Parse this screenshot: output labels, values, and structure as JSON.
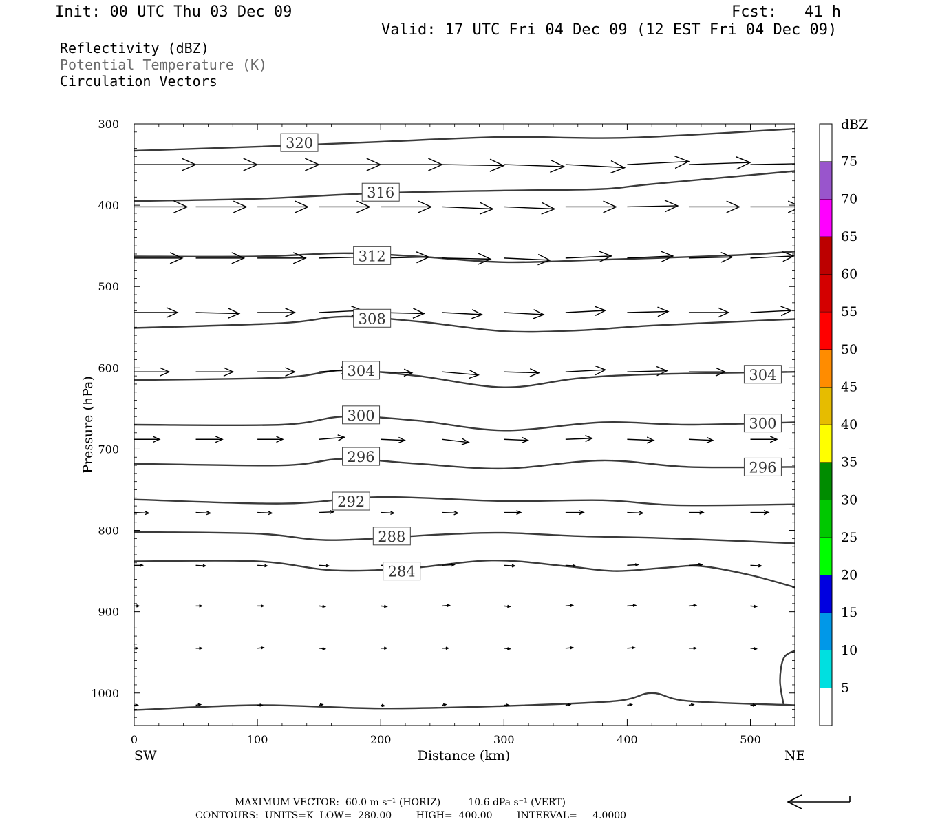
{
  "header": {
    "init": "Init: 00 UTC Thu 03 Dec 09",
    "fcst": "Fcst:   41 h",
    "valid": "Valid: 17 UTC Fri 04 Dec 09 (12 EST Fri 04 Dec 09)"
  },
  "legend_text": {
    "line1": "Reflectivity (dBZ)",
    "line2": "Potential Temperature (K)",
    "line3": "Circulation Vectors"
  },
  "footer": {
    "line1": "MAXIMUM VECTOR:  60.0 m s⁻¹ (HORIZ)         10.6 dPa s⁻¹ (VERT)",
    "line2": "CONTOURS:  UNITS=K  LOW=  280.00        HIGH=  400.00        INTERVAL=     4.0000"
  },
  "colors": {
    "contour": "#3a3a3a",
    "legend_gray": "#6a6a6a"
  },
  "icons": {
    "reference-vector": "arrow"
  },
  "chart_data": {
    "type": "contour",
    "xlabel": "Distance (km)",
    "ylabel": "Pressure (hPa)",
    "xlim": [
      0,
      536
    ],
    "ylim": [
      1040,
      300
    ],
    "xticks": [
      0,
      100,
      200,
      300,
      400,
      500
    ],
    "yticks": [
      300,
      400,
      500,
      600,
      700,
      800,
      900,
      1000
    ],
    "x_endpoints": {
      "left": "SW",
      "right": "NE"
    },
    "colorbar": {
      "title": "dBZ",
      "levels": [
        5,
        10,
        15,
        20,
        25,
        30,
        35,
        40,
        45,
        50,
        55,
        60,
        65,
        70,
        75
      ],
      "colors": [
        "#ffffff",
        "#00e0e0",
        "#0098e8",
        "#0000e0",
        "#00ff00",
        "#00c800",
        "#008c00",
        "#ffff00",
        "#e6bc00",
        "#ff8c00",
        "#ff0000",
        "#d40000",
        "#bc0000",
        "#ff00ff",
        "#9955cc",
        "#ffffff"
      ]
    },
    "contours": [
      {
        "value": 320,
        "label": "320",
        "points": [
          [
            0,
            333
          ],
          [
            100,
            328
          ],
          [
            200,
            322
          ],
          [
            300,
            316
          ],
          [
            400,
            317
          ],
          [
            536,
            306
          ]
        ],
        "labels_at": [
          [
            134,
            323
          ]
        ]
      },
      {
        "value": 316,
        "label": "316",
        "points": [
          [
            0,
            395
          ],
          [
            100,
            392
          ],
          [
            200,
            385
          ],
          [
            300,
            382
          ],
          [
            380,
            380
          ],
          [
            420,
            374
          ],
          [
            536,
            358
          ]
        ],
        "labels_at": [
          [
            200,
            384
          ]
        ]
      },
      {
        "value": 312,
        "label": "312",
        "points": [
          [
            0,
            463
          ],
          [
            100,
            463
          ],
          [
            170,
            459
          ],
          [
            230,
            463
          ],
          [
            300,
            470
          ],
          [
            380,
            467
          ],
          [
            480,
            462
          ],
          [
            536,
            457
          ]
        ],
        "labels_at": [
          [
            193,
            462
          ]
        ]
      },
      {
        "value": 308,
        "label": "308",
        "points": [
          [
            0,
            551
          ],
          [
            120,
            545
          ],
          [
            170,
            537
          ],
          [
            230,
            543
          ],
          [
            300,
            555
          ],
          [
            360,
            554
          ],
          [
            420,
            548
          ],
          [
            536,
            540
          ]
        ],
        "labels_at": [
          [
            193,
            539
          ]
        ]
      },
      {
        "value": 304,
        "label": "304",
        "points": [
          [
            0,
            615
          ],
          [
            120,
            612
          ],
          [
            170,
            603
          ],
          [
            230,
            610
          ],
          [
            300,
            624
          ],
          [
            360,
            613
          ],
          [
            420,
            608
          ],
          [
            536,
            605
          ]
        ],
        "labels_at": [
          [
            184,
            603
          ],
          [
            510,
            608
          ]
        ]
      },
      {
        "value": 300,
        "label": "300",
        "points": [
          [
            0,
            670
          ],
          [
            120,
            670
          ],
          [
            170,
            660
          ],
          [
            230,
            665
          ],
          [
            300,
            677
          ],
          [
            380,
            667
          ],
          [
            450,
            670
          ],
          [
            536,
            667
          ]
        ],
        "labels_at": [
          [
            184,
            658
          ],
          [
            510,
            668
          ]
        ]
      },
      {
        "value": 296,
        "label": "296",
        "points": [
          [
            0,
            718
          ],
          [
            120,
            720
          ],
          [
            170,
            712
          ],
          [
            230,
            718
          ],
          [
            300,
            724
          ],
          [
            380,
            714
          ],
          [
            450,
            722
          ],
          [
            536,
            722
          ]
        ],
        "labels_at": [
          [
            184,
            709
          ],
          [
            510,
            722
          ]
        ]
      },
      {
        "value": 292,
        "label": "292",
        "points": [
          [
            0,
            762
          ],
          [
            120,
            767
          ],
          [
            200,
            759
          ],
          [
            300,
            764
          ],
          [
            380,
            763
          ],
          [
            440,
            769
          ],
          [
            536,
            768
          ]
        ],
        "labels_at": [
          [
            176,
            764
          ]
        ]
      },
      {
        "value": 288,
        "label": "288",
        "points": [
          [
            0,
            802
          ],
          [
            100,
            804
          ],
          [
            160,
            812
          ],
          [
            250,
            805
          ],
          [
            300,
            803
          ],
          [
            360,
            807
          ],
          [
            440,
            810
          ],
          [
            536,
            816
          ]
        ],
        "labels_at": [
          [
            209,
            807
          ]
        ]
      },
      {
        "value": 284,
        "label": "284",
        "points": [
          [
            0,
            838
          ],
          [
            100,
            838
          ],
          [
            160,
            849
          ],
          [
            220,
            847
          ],
          [
            290,
            837
          ],
          [
            350,
            844
          ],
          [
            390,
            850
          ],
          [
            430,
            846
          ],
          [
            460,
            844
          ],
          [
            500,
            855
          ],
          [
            536,
            870
          ]
        ],
        "labels_at": [
          [
            217,
            850
          ]
        ]
      },
      {
        "value": 280,
        "label": "",
        "points": [
          [
            0,
            1021
          ],
          [
            100,
            1015
          ],
          [
            200,
            1019
          ],
          [
            300,
            1016
          ],
          [
            390,
            1010
          ],
          [
            420,
            1000
          ],
          [
            450,
            1010
          ],
          [
            536,
            1015
          ]
        ],
        "labels_at": []
      },
      {
        "value": 280,
        "label": "",
        "points": [
          [
            527,
            1015
          ],
          [
            524,
            985
          ],
          [
            527,
            957
          ],
          [
            536,
            948
          ]
        ],
        "labels_at": []
      }
    ],
    "vectors_note": "circulation vectors in m/s (u along section) with vertical component",
    "vector_rows": [
      {
        "p": 350,
        "x": [
          0,
          50,
          100,
          150,
          200,
          250,
          300,
          350,
          400,
          450,
          500
        ],
        "u": [
          51,
          51,
          51,
          51,
          51,
          51,
          50,
          49,
          51,
          51,
          51
        ],
        "v": [
          0,
          0,
          0,
          0,
          0,
          -0.5,
          -1,
          -1.5,
          1.5,
          1,
          0.5
        ]
      },
      {
        "p": 402,
        "x": [
          0,
          50,
          100,
          150,
          200,
          250,
          300,
          350,
          400,
          450,
          500
        ],
        "u": [
          44,
          42,
          42,
          42,
          42,
          42,
          42,
          42,
          42,
          42,
          42
        ],
        "v": [
          0,
          0,
          0,
          0,
          0,
          -1,
          -1,
          0,
          0.5,
          0,
          0
        ]
      },
      {
        "p": 465,
        "x": [
          0,
          50,
          100,
          150,
          200,
          250,
          300,
          350,
          400,
          450,
          500
        ],
        "u": [
          40,
          40,
          40,
          40,
          40,
          40,
          38,
          38,
          38,
          36,
          36
        ],
        "v": [
          0,
          0,
          0,
          0.5,
          0.5,
          -0.5,
          -1,
          1,
          1,
          0.5,
          1
        ]
      },
      {
        "p": 532,
        "x": [
          0,
          50,
          100,
          150,
          200,
          250,
          300,
          350,
          400,
          450,
          500
        ],
        "u": [
          36,
          36,
          31,
          36,
          36,
          33,
          33,
          33,
          34,
          33,
          34
        ],
        "v": [
          0,
          -0.5,
          0,
          1,
          -0.5,
          -1,
          -1,
          1,
          0.5,
          0,
          1
        ]
      },
      {
        "p": 605,
        "x": [
          0,
          50,
          100,
          150,
          200,
          250,
          300,
          350,
          400,
          450,
          500
        ],
        "u": [
          29,
          31,
          31,
          25,
          26,
          30,
          29,
          33,
          33,
          30,
          25
        ],
        "v": [
          0,
          0,
          0,
          1,
          -0.5,
          -1.5,
          -0.5,
          1,
          0.5,
          0,
          1
        ]
      },
      {
        "p": 688,
        "x": [
          0,
          50,
          100,
          150,
          200,
          250,
          300,
          350,
          400,
          450,
          500
        ],
        "u": [
          21,
          22,
          21,
          21,
          20,
          22,
          20,
          22,
          22,
          20,
          22
        ],
        "v": [
          0,
          0,
          0,
          1,
          -0.5,
          -1.5,
          -0.5,
          0.5,
          -0.5,
          -0.5,
          0
        ]
      },
      {
        "p": 778,
        "x": [
          0,
          50,
          100,
          150,
          200,
          250,
          300,
          350,
          400,
          450,
          500
        ],
        "u": [
          12,
          12,
          12,
          12,
          11,
          13,
          14,
          15,
          13,
          12,
          15
        ],
        "v": [
          -0.3,
          -0.3,
          -0.3,
          0.3,
          -0.3,
          -0.3,
          0,
          0,
          -0.3,
          0,
          0
        ]
      },
      {
        "p": 843,
        "x": [
          0,
          50,
          100,
          150,
          200,
          250,
          300,
          350,
          400,
          450,
          500
        ],
        "u": [
          7,
          8,
          8,
          8,
          7,
          10,
          9,
          8,
          9,
          11,
          9
        ],
        "v": [
          0,
          -0.3,
          -0.3,
          -0.3,
          0,
          0.3,
          -0.3,
          -0.3,
          0.3,
          0.3,
          -0.3
        ]
      },
      {
        "p": 893,
        "x": [
          0,
          50,
          100,
          150,
          200,
          250,
          300,
          350,
          400,
          450,
          500
        ],
        "u": [
          4,
          5,
          5,
          5,
          5,
          6,
          5,
          6,
          7,
          6,
          5
        ],
        "v": [
          0,
          0,
          0,
          -0.3,
          -0.3,
          0.3,
          -0.3,
          0.3,
          0.3,
          0.3,
          -0.3
        ]
      },
      {
        "p": 945,
        "x": [
          0,
          50,
          100,
          150,
          200,
          250,
          300,
          350,
          400,
          450,
          500
        ],
        "u": [
          3,
          5,
          5,
          5,
          5,
          5,
          5,
          6,
          6,
          6,
          5
        ],
        "v": [
          0,
          0,
          0.3,
          -0.3,
          0,
          0,
          -0.3,
          0.3,
          0.3,
          0,
          -0.3
        ]
      },
      {
        "p": 1015,
        "x": [
          0,
          50,
          100,
          150,
          200,
          250,
          300,
          350,
          400,
          450,
          500
        ],
        "u": [
          3,
          4,
          4,
          3,
          3,
          3,
          4,
          4,
          4,
          4,
          4
        ],
        "v": [
          0,
          0.3,
          0,
          0.3,
          -0.3,
          0.3,
          0,
          0.3,
          0.3,
          0.3,
          0
        ]
      }
    ]
  }
}
